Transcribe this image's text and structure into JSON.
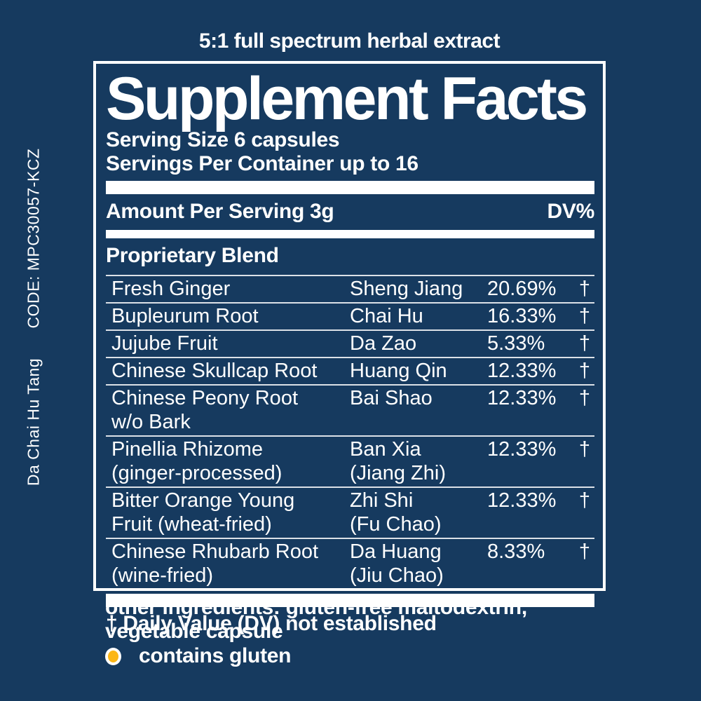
{
  "colors": {
    "background": "#163a5f",
    "text": "#ffffff",
    "gluten_dot": "#fcb716",
    "divider": "rgba(255,255,255,0.85)"
  },
  "tagline": "5:1 full spectrum herbal extract",
  "side": {
    "code": "CODE: MPC30057-KCZ",
    "product": "Da Chai Hu Tang"
  },
  "panel": {
    "title": "Supplement Facts",
    "serving_size": "Serving Size 6 capsules",
    "servings_per_container": "Servings Per Container up to 16",
    "amount_header": "Amount Per Serving 3g",
    "dv_header": "DV%",
    "blend_header": "Proprietary Blend",
    "rows": [
      {
        "name_lines": [
          "Fresh Ginger"
        ],
        "pinyin_lines": [
          "Sheng Jiang"
        ],
        "percent": "20.69%",
        "dv": "†"
      },
      {
        "name_lines": [
          "Bupleurum Root"
        ],
        "pinyin_lines": [
          "Chai Hu"
        ],
        "percent": "16.33%",
        "dv": "†"
      },
      {
        "name_lines": [
          "Jujube Fruit"
        ],
        "pinyin_lines": [
          "Da Zao"
        ],
        "percent": "5.33%",
        "dv": "†"
      },
      {
        "name_lines": [
          "Chinese Skullcap Root"
        ],
        "pinyin_lines": [
          "Huang Qin"
        ],
        "percent": "12.33%",
        "dv": "†"
      },
      {
        "name_lines": [
          "Chinese Peony Root",
          "w/o Bark"
        ],
        "pinyin_lines": [
          "Bai Shao"
        ],
        "percent": "12.33%",
        "dv": "†"
      },
      {
        "name_lines": [
          "Pinellia Rhizome",
          "(ginger-processed)"
        ],
        "pinyin_lines": [
          "Ban Xia",
          "(Jiang Zhi)"
        ],
        "percent": "12.33%",
        "dv": "†"
      },
      {
        "name_lines": [
          "Bitter Orange Young",
          "Fruit (wheat-fried)"
        ],
        "pinyin_lines": [
          "Zhi Shi",
          "(Fu Chao)"
        ],
        "percent": "12.33%",
        "dv": "†"
      },
      {
        "name_lines": [
          "Chinese Rhubarb Root",
          "(wine-fried)"
        ],
        "pinyin_lines": [
          "Da Huang",
          "(Jiu Chao)"
        ],
        "percent": "8.33%",
        "dv": "†"
      }
    ],
    "footnote": "† Daily Value (DV) not established"
  },
  "other_ingredients": {
    "line1": "other ingredients: gluten-free maltodextrin,",
    "line2": "vegetable capsule"
  },
  "gluten_note": "contains gluten"
}
